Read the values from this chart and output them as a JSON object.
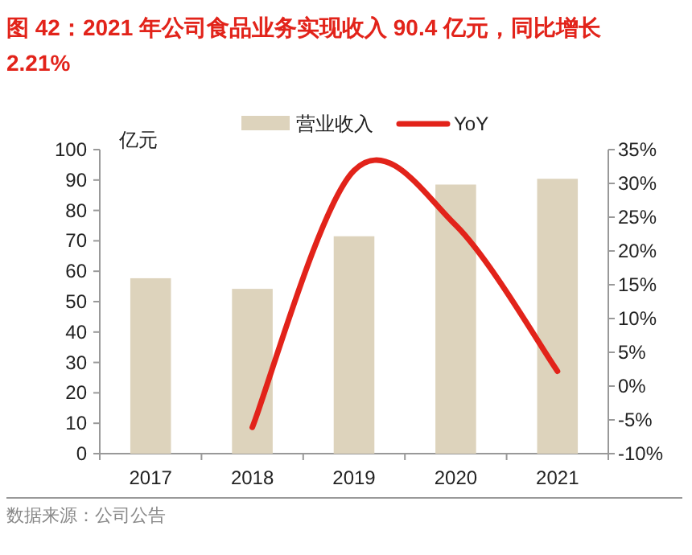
{
  "chart_data": {
    "type": "bar",
    "title": "图 42：2021 年公司食品业务实现收入 90.4 亿元，同比增长 2.21%",
    "categories": [
      "2017",
      "2018",
      "2019",
      "2020",
      "2021"
    ],
    "series": [
      {
        "name": "营业收入",
        "color": "#ddd3bc",
        "values": [
          57.7,
          54.2,
          71.5,
          88.5,
          90.4
        ]
      },
      {
        "name": "YoY",
        "type": "line",
        "axis": "y2",
        "color": "#e2231a",
        "values": [
          null,
          -6.1,
          31.9,
          23.8,
          2.21
        ]
      }
    ],
    "ylabel": "亿元",
    "ylim": [
      0,
      100
    ],
    "yticks": [
      0,
      10,
      20,
      30,
      40,
      50,
      60,
      70,
      80,
      90,
      100
    ],
    "y2lim": [
      -10,
      35
    ],
    "y2ticks": [
      {
        "value": -10,
        "label": "-10%"
      },
      {
        "value": -5,
        "label": "-5%"
      },
      {
        "value": 0,
        "label": "0%"
      },
      {
        "value": 5,
        "label": "5%"
      },
      {
        "value": 10,
        "label": "10%"
      },
      {
        "value": 15,
        "label": "15%"
      },
      {
        "value": 20,
        "label": "20%"
      },
      {
        "value": 25,
        "label": "25%"
      },
      {
        "value": 30,
        "label": "30%"
      },
      {
        "value": 35,
        "label": "35%"
      }
    ],
    "legend": "top",
    "annotations": [
      "数据来源：公司公告"
    ]
  }
}
